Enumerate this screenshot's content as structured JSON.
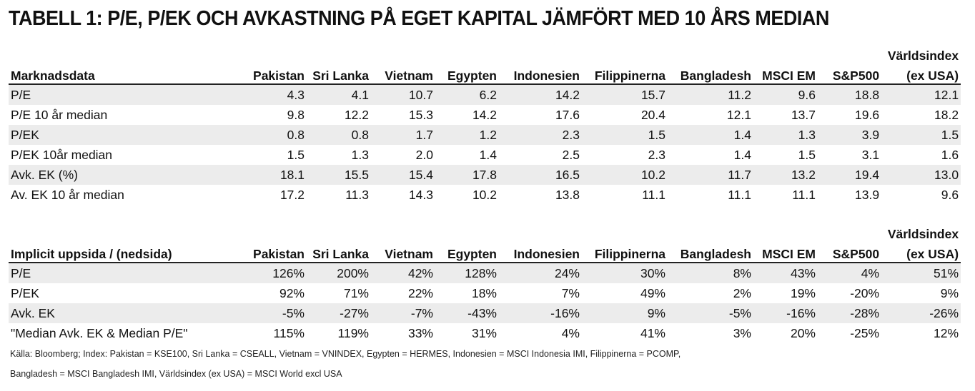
{
  "title": "TABELL 1: P/E, P/EK OCH AVKASTNING PÅ EGET KAPITAL JÄMFÖRT MED 10 ÅRS MEDIAN",
  "columns": [
    "Pakistan",
    "Sri Lanka",
    "Vietnam",
    "Egypten",
    "Indonesien",
    "Filippinerna",
    "Bangladesh",
    "MSCI EM",
    "S&P500"
  ],
  "last_column": {
    "line1": "Världsindex",
    "line2": "(ex USA)"
  },
  "table1": {
    "header": "Marknadsdata",
    "rows": [
      {
        "label": "P/E",
        "values": [
          "4.3",
          "4.1",
          "10.7",
          "6.2",
          "14.2",
          "15.7",
          "11.2",
          "9.6",
          "18.8",
          "12.1"
        ]
      },
      {
        "label": "P/E 10 år  median",
        "values": [
          "9.8",
          "12.2",
          "15.3",
          "14.2",
          "17.6",
          "20.4",
          "12.1",
          "13.7",
          "19.6",
          "18.2"
        ]
      },
      {
        "label": "P/EK",
        "values": [
          "0.8",
          "0.8",
          "1.7",
          "1.2",
          "2.3",
          "1.5",
          "1.4",
          "1.3",
          "3.9",
          "1.5"
        ]
      },
      {
        "label": "P/EK 10år median",
        "values": [
          "1.5",
          "1.3",
          "2.0",
          "1.4",
          "2.5",
          "2.3",
          "1.4",
          "1.5",
          "3.1",
          "1.6"
        ]
      },
      {
        "label": "Avk. EK (%)",
        "values": [
          "18.1",
          "15.5",
          "15.4",
          "17.8",
          "16.5",
          "10.2",
          "11.7",
          "13.2",
          "19.4",
          "13.0"
        ]
      },
      {
        "label": "Av. EK 10 år median",
        "values": [
          "17.2",
          "11.3",
          "14.3",
          "10.2",
          "13.8",
          "11.1",
          "11.1",
          "11.1",
          "13.9",
          "9.6"
        ]
      }
    ]
  },
  "table2": {
    "header": "Implicit uppsida / (nedsida)",
    "rows": [
      {
        "label": "P/E",
        "values": [
          "126%",
          "200%",
          "42%",
          "128%",
          "24%",
          "30%",
          "8%",
          "43%",
          "4%",
          "51%"
        ]
      },
      {
        "label": "P/EK",
        "values": [
          "92%",
          "71%",
          "22%",
          "18%",
          "7%",
          "49%",
          "2%",
          "19%",
          "-20%",
          "9%"
        ]
      },
      {
        "label": "Avk. EK",
        "values": [
          "-5%",
          "-27%",
          "-7%",
          "-43%",
          "-16%",
          "9%",
          "-5%",
          "-16%",
          "-28%",
          "-26%"
        ]
      },
      {
        "label": "\"Median Avk. EK & Median P/E\"",
        "values": [
          "115%",
          "119%",
          "33%",
          "31%",
          "4%",
          "41%",
          "3%",
          "20%",
          "-25%",
          "12%"
        ]
      }
    ]
  },
  "source": {
    "line1": "Källa: Bloomberg; Index: Pakistan = KSE100, Sri Lanka = CSEALL, Vietnam = VNINDEX, Egypten = HERMES, Indonesien = MSCI Indonesia IMI, Filippinerna = PCOMP,",
    "line2": "Bangladesh = MSCI Bangladesh IMI, Världsindex (ex USA) = MSCI World excl USA"
  },
  "colors": {
    "row_shade": "#ececec",
    "text": "#111111"
  }
}
